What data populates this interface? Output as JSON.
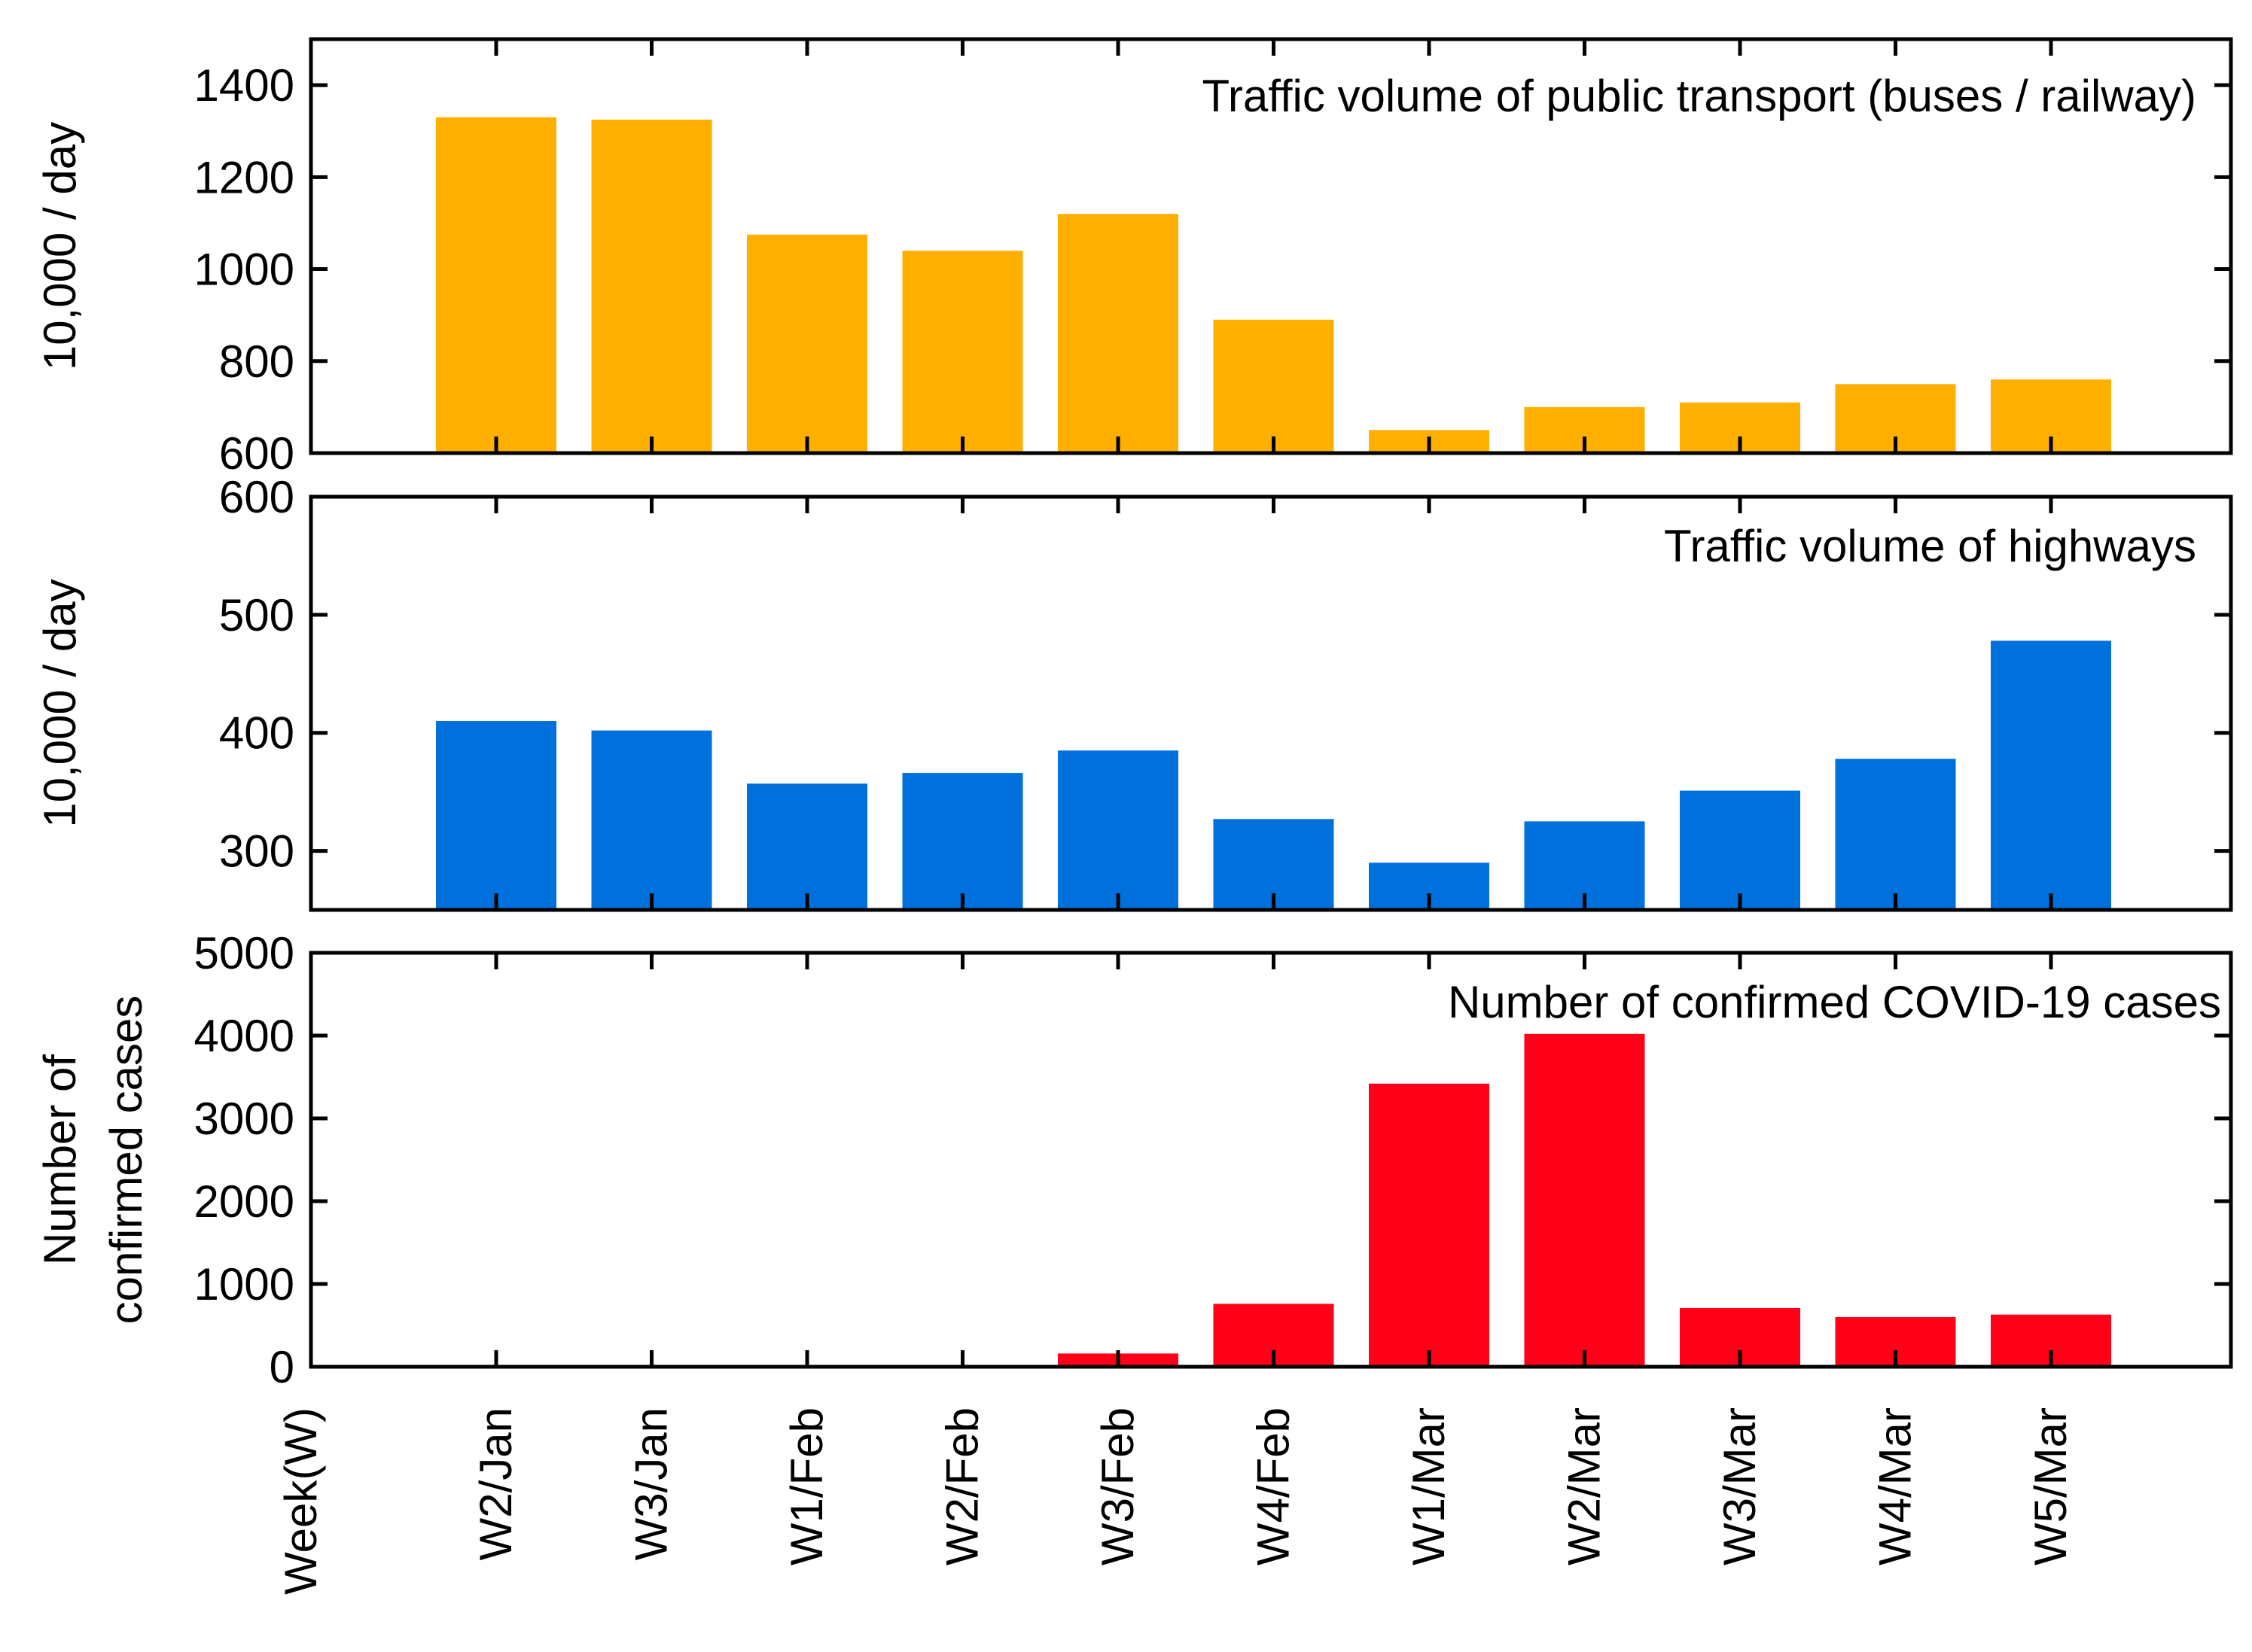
{
  "chart_data": [
    {
      "type": "bar",
      "title": "Traffic volume of public transport (buses / railway)",
      "ylabel": "10,000 / day",
      "ylim": [
        600,
        1500
      ],
      "yticks": [
        600,
        800,
        1000,
        1200,
        1400
      ],
      "categories": [
        "W2/Jan",
        "W3/Jan",
        "W1/Feb",
        "W2/Feb",
        "W3/Feb",
        "W4/Feb",
        "W1/Mar",
        "W2/Mar",
        "W3/Mar",
        "W4/Mar",
        "W5/Mar"
      ],
      "values": [
        1330,
        1325,
        1075,
        1040,
        1120,
        890,
        650,
        700,
        710,
        750,
        760
      ],
      "color": "#FFAF00"
    },
    {
      "type": "bar",
      "title": "Traffic volume of highways",
      "ylabel": "10,000 / day",
      "ylim": [
        250,
        600
      ],
      "yticks": [
        300,
        400,
        500,
        600
      ],
      "categories": [
        "W2/Jan",
        "W3/Jan",
        "W1/Feb",
        "W2/Feb",
        "W3/Feb",
        "W4/Feb",
        "W1/Mar",
        "W2/Mar",
        "W3/Mar",
        "W4/Mar",
        "W5/Mar"
      ],
      "values": [
        410,
        402,
        357,
        366,
        385,
        327,
        290,
        325,
        351,
        378,
        478
      ],
      "color": "#0070DC"
    },
    {
      "type": "bar",
      "title": "Number of confirmed COVID-19 cases",
      "ylabel_lines": [
        "Number of",
        "confirmed cases"
      ],
      "ylim": [
        0,
        5000
      ],
      "yticks": [
        0,
        1000,
        2000,
        3000,
        4000,
        5000
      ],
      "categories": [
        "W2/Jan",
        "W3/Jan",
        "W1/Feb",
        "W2/Feb",
        "W3/Feb",
        "W4/Feb",
        "W1/Mar",
        "W2/Mar",
        "W3/Mar",
        "W4/Mar",
        "W5/Mar"
      ],
      "values": [
        0,
        0,
        0,
        0,
        160,
        760,
        3420,
        4020,
        710,
        600,
        630
      ],
      "color": "#FF0019"
    }
  ],
  "x_axis": {
    "label": "Week(W)",
    "categories": [
      "W2/Jan",
      "W3/Jan",
      "W1/Feb",
      "W2/Feb",
      "W3/Feb",
      "W4/Feb",
      "W1/Mar",
      "W2/Mar",
      "W3/Mar",
      "W4/Mar",
      "W5/Mar"
    ]
  }
}
